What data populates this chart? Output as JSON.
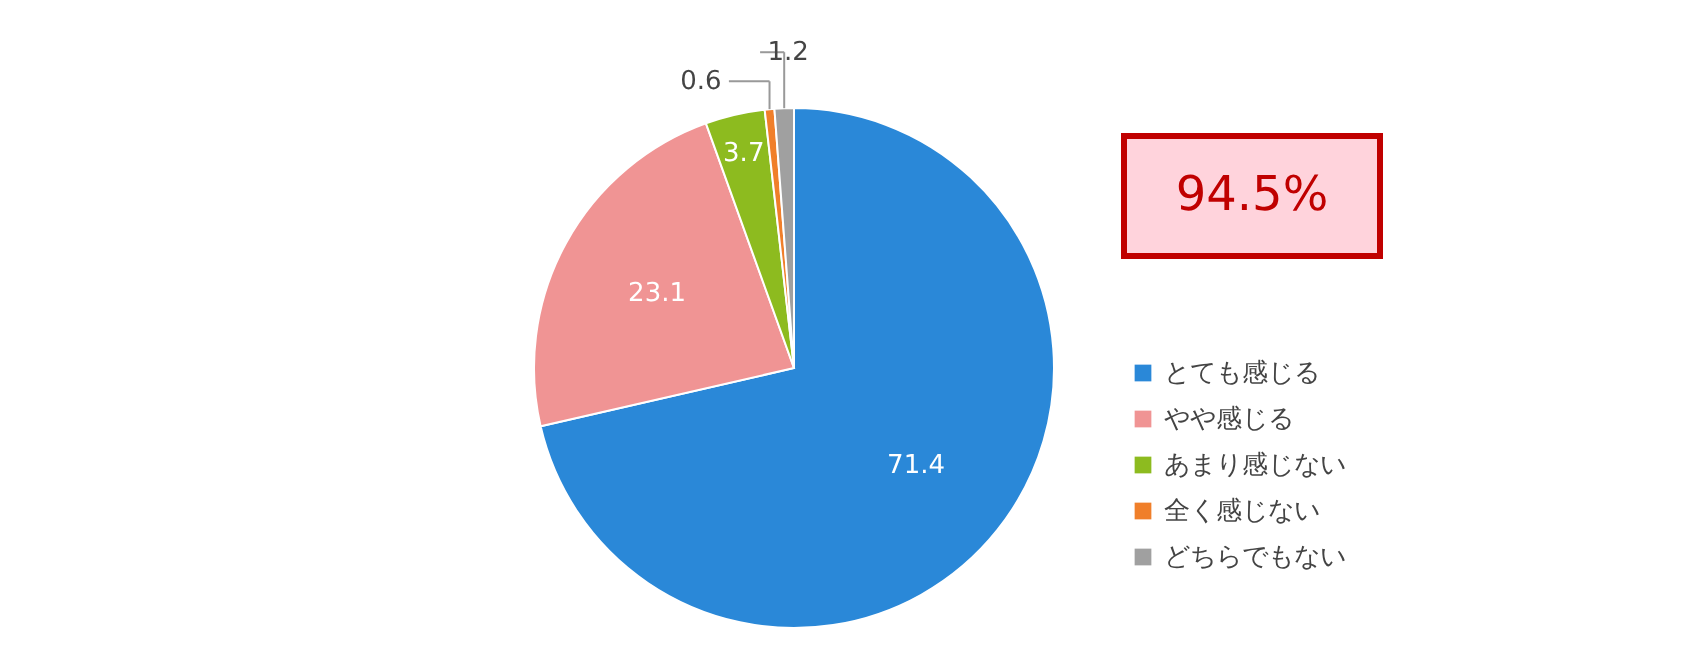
{
  "chart_data": {
    "type": "pie",
    "categories": [
      "とても感じる",
      "やや感じる",
      "あまり感じない",
      "全く感じない",
      "どちらでもない"
    ],
    "values": [
      71.4,
      23.1,
      3.7,
      0.6,
      1.2
    ],
    "colors": [
      "#2a88d8",
      "#f09494",
      "#8dbb1f",
      "#f07f2a",
      "#a0a0a0"
    ],
    "data_labels": true,
    "legend": "bottom right",
    "annotations": [
      "94.5%"
    ]
  }
}
